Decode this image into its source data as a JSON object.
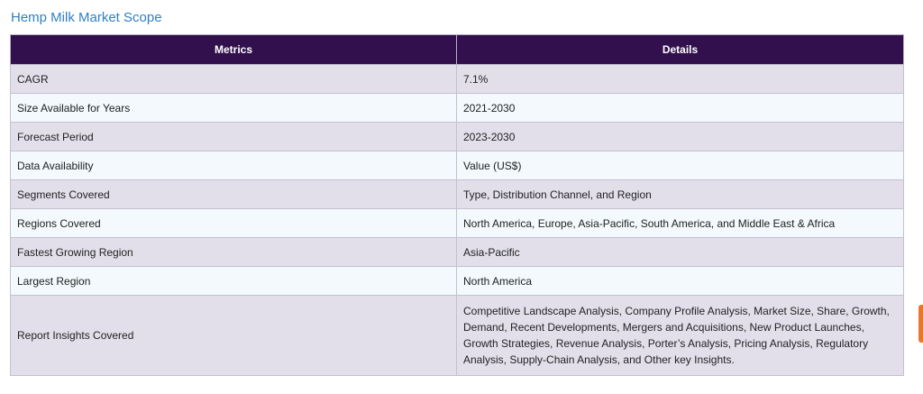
{
  "title": "Hemp Milk Market Scope",
  "table": {
    "headers": [
      "Metrics",
      "Details"
    ],
    "rows": [
      {
        "metric": "CAGR",
        "detail": "7.1%"
      },
      {
        "metric": "Size Available for Years",
        "detail": "2021-2030"
      },
      {
        "metric": "Forecast Period",
        "detail": "2023-2030"
      },
      {
        "metric": "Data Availability",
        "detail": "Value (US$)"
      },
      {
        "metric": "Segments Covered",
        "detail": "Type, Distribution Channel, and Region"
      },
      {
        "metric": "Regions Covered",
        "detail": "North America, Europe, Asia-Pacific, South America, and Middle East & Africa"
      },
      {
        "metric": "Fastest Growing Region",
        "detail": "Asia-Pacific"
      },
      {
        "metric": "Largest Region",
        "detail": "North America"
      },
      {
        "metric": "Report Insights Covered",
        "detail": "Competitive Landscape Analysis, Company Profile Analysis, Market Size, Share, Growth, Demand, Recent Developments, Mergers and Acquisitions, New Product Launches, Growth Strategies, Revenue Analysis, Porter’s Analysis, Pricing Analysis, Regulatory Analysis, Supply-Chain Analysis, and Other key Insights."
      }
    ]
  },
  "colors": {
    "title": "#2f80c5",
    "header_bg": "#32104d",
    "row_odd": "#e2dfeb",
    "row_even": "#f3f9fc",
    "side_tab": "#e8772e"
  }
}
